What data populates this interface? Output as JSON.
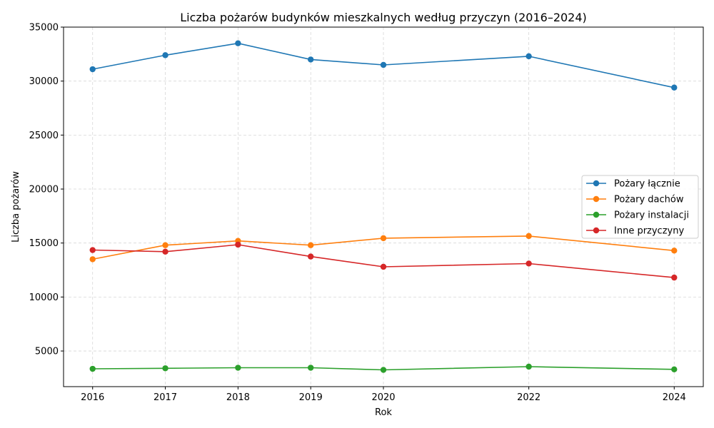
{
  "chart_data": {
    "type": "line",
    "title": "Liczba pożarów budynków mieszkalnych według przyczyn (2016–2024)",
    "xlabel": "Rok",
    "ylabel": "Liczba pożarów",
    "x": [
      2016,
      2017,
      2018,
      2019,
      2020,
      2022,
      2024
    ],
    "xticks": [
      "2016",
      "2017",
      "2018",
      "2019",
      "2020",
      "2022",
      "2024"
    ],
    "xlim": [
      2015.6,
      2024.4
    ],
    "ylim": [
      1700,
      35000
    ],
    "yticks": [
      5000,
      10000,
      15000,
      20000,
      25000,
      30000,
      35000
    ],
    "grid": true,
    "legend_position": "center-right",
    "series": [
      {
        "name": "Pożary łącznie",
        "color": "#1f77b4",
        "values": [
          31100,
          32400,
          33500,
          32000,
          31500,
          32300,
          29400
        ]
      },
      {
        "name": "Pożary dachów",
        "color": "#ff7f0e",
        "values": [
          13500,
          14800,
          15200,
          14800,
          15450,
          15650,
          14300
        ]
      },
      {
        "name": "Pożary instalacji",
        "color": "#2ca02c",
        "values": [
          3350,
          3400,
          3450,
          3450,
          3250,
          3550,
          3300
        ]
      },
      {
        "name": "Inne przyczyny",
        "color": "#d62728",
        "values": [
          14350,
          14200,
          14850,
          13750,
          12800,
          13100,
          11800
        ]
      }
    ]
  }
}
